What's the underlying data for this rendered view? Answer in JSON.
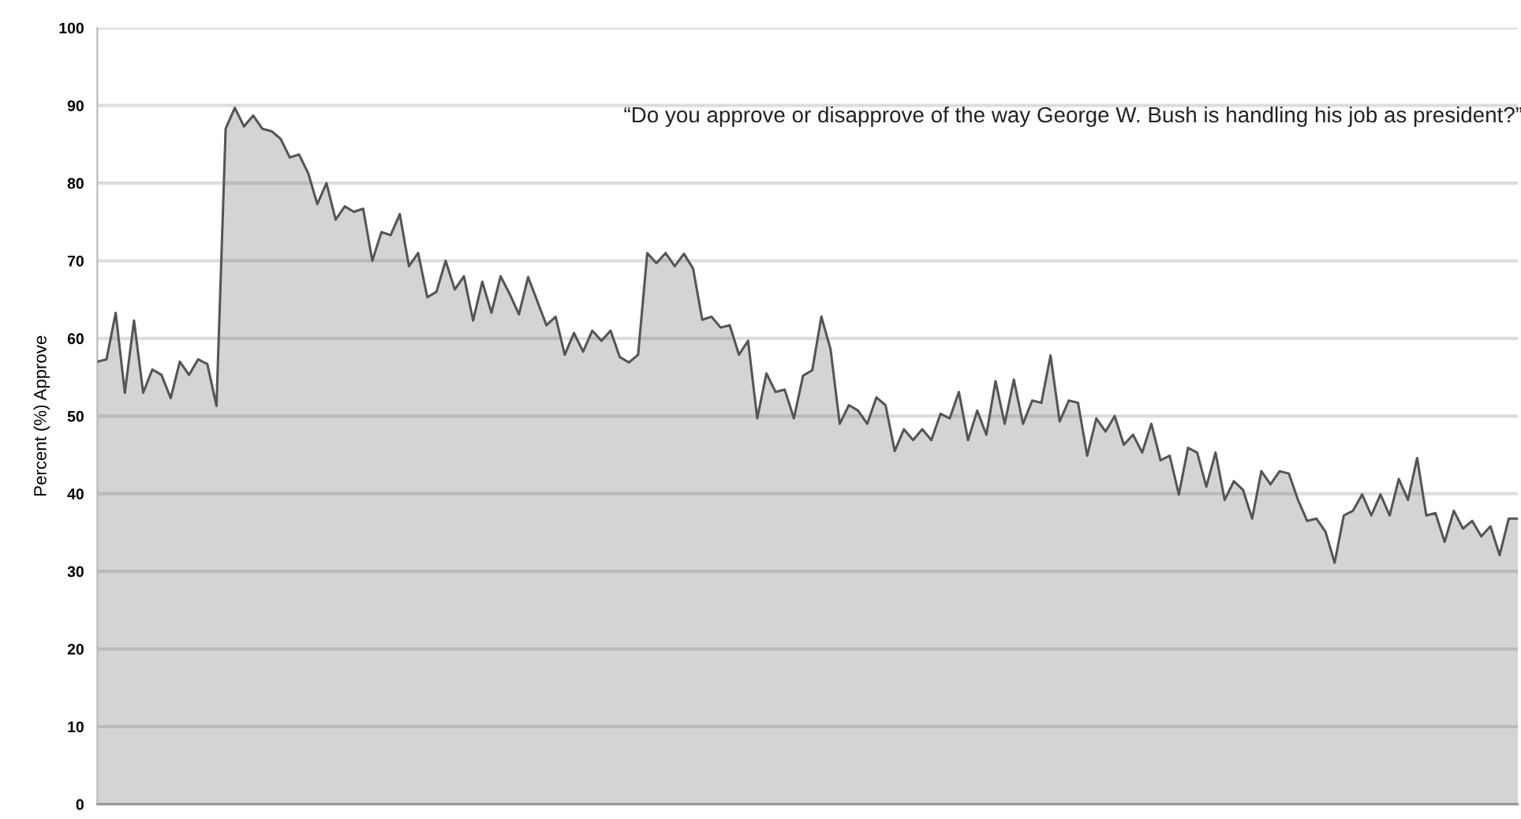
{
  "chart_data": {
    "type": "area",
    "ylabel": "Percent (%) Approve",
    "annotations": [
      "“Do you approve or disapprove of the way George W. Bush is handling his job as president?”"
    ],
    "ylim": [
      0,
      100
    ],
    "yticks": [
      0,
      10,
      20,
      30,
      40,
      50,
      60,
      70,
      80,
      90,
      100
    ],
    "grid": "y",
    "legend": false,
    "marker": "none",
    "line_style": "solid",
    "categories": [
      null,
      null,
      null,
      null,
      null,
      null,
      null,
      null,
      null,
      null,
      null,
      null,
      null,
      null,
      null,
      null,
      null,
      null,
      null,
      null,
      null,
      null,
      null,
      null,
      null,
      null,
      null,
      null,
      null,
      null,
      null,
      null,
      null,
      null,
      null,
      null,
      null,
      null,
      null,
      null,
      null,
      null,
      null,
      null,
      null,
      null,
      null,
      null,
      null,
      null,
      null,
      null,
      null,
      null,
      null,
      null,
      null,
      null,
      null,
      null,
      null,
      null,
      null,
      null,
      null,
      null,
      null,
      null,
      null,
      null,
      null,
      null,
      null,
      null,
      null,
      null,
      null,
      null,
      null,
      null,
      null,
      null,
      null,
      null,
      null,
      null,
      null,
      null,
      null,
      null,
      null,
      null,
      null,
      null,
      null,
      null,
      null,
      null,
      null,
      null,
      null,
      null,
      null,
      null,
      null,
      null,
      null,
      null,
      null,
      null,
      null,
      null,
      null,
      null,
      null,
      null,
      null,
      null,
      null,
      null,
      null,
      null,
      null,
      null,
      null,
      null,
      null,
      null,
      null,
      null,
      null,
      null,
      null,
      null,
      null,
      null,
      null,
      null,
      null,
      null,
      null,
      null,
      null,
      null,
      null,
      null,
      null,
      null,
      null,
      null,
      null,
      null,
      null,
      null,
      null,
      null
    ],
    "series": [
      {
        "color": "#555555",
        "values": [
          57,
          57.3,
          63.3,
          53,
          62.3,
          53,
          56,
          55.3,
          52.3,
          57,
          55.3,
          57.3,
          56.7,
          51.3,
          87,
          89.7,
          87.3,
          88.7,
          87,
          86.7,
          85.7,
          83.3,
          83.7,
          81.3,
          77.3,
          80,
          75.3,
          77,
          76.3,
          76.7,
          70,
          73.7,
          73.3,
          76,
          69.3,
          71,
          65.3,
          66,
          70,
          66.3,
          68,
          62.3,
          67.3,
          63.3,
          68,
          65.7,
          63.1,
          67.9,
          64.8,
          61.7,
          62.8,
          57.9,
          60.7,
          58.3,
          61,
          59.7,
          61,
          57.6,
          56.9,
          57.9,
          71,
          69.7,
          71,
          69.3,
          70.9,
          69,
          62.4,
          62.8,
          61.4,
          61.7,
          57.9,
          59.7,
          49.7,
          55.5,
          53.1,
          53.4,
          49.7,
          55.2,
          55.9,
          62.8,
          58.6,
          49,
          51.4,
          50.7,
          49,
          52.4,
          51.4,
          45.5,
          48.3,
          46.9,
          48.3,
          46.9,
          50.3,
          49.7,
          53.1,
          46.9,
          50.7,
          47.6,
          54.5,
          49,
          54.7,
          49,
          52,
          51.7,
          57.8,
          49.3,
          52,
          51.7,
          44.9,
          49.7,
          48,
          50,
          46.3,
          47.6,
          45.3,
          49,
          44.3,
          44.9,
          39.9,
          45.9,
          45.3,
          40.9,
          45.3,
          39.2,
          41.6,
          40.5,
          36.8,
          42.9,
          41.2,
          42.9,
          42.6,
          39.2,
          36.5,
          36.8,
          35.1,
          31.1,
          37.2,
          37.8,
          39.9,
          37.2,
          39.9,
          37.2,
          41.9,
          39.2,
          44.6,
          37.2,
          37.5,
          33.8,
          37.8,
          35.5,
          36.5,
          34.5,
          35.8,
          32.1,
          36.8,
          36.8
        ]
      }
    ]
  }
}
